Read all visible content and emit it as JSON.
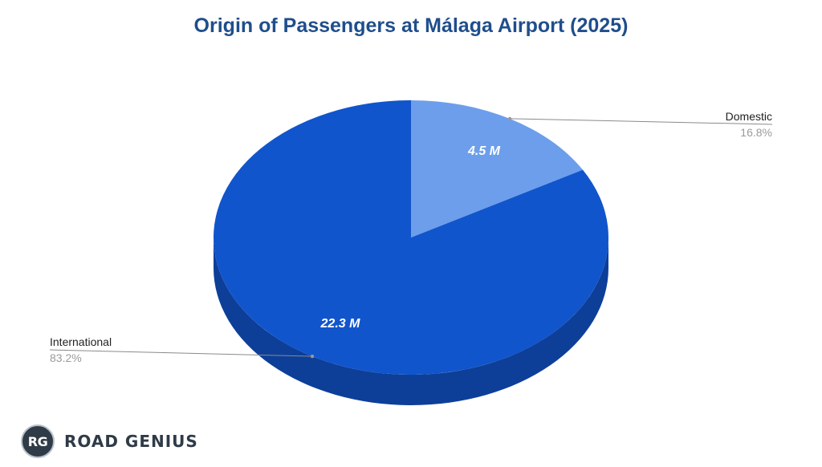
{
  "chart_data": {
    "type": "pie",
    "title": "Origin of Passengers at Málaga Airport (2025)",
    "slices": [
      {
        "name": "Domestic",
        "value": 4.5,
        "value_label": "4.5 M",
        "percent_label": "16.8%",
        "color": "#6d9eeb"
      },
      {
        "name": "International",
        "value": 22.3,
        "value_label": "22.3 M",
        "percent_label": "83.2%",
        "color": "#1155cc"
      }
    ],
    "side_color": "#0d3f99",
    "start_angle_deg": 0,
    "direction": "clockwise",
    "legend": "none"
  },
  "branding": {
    "badge_text": "RG",
    "name": "ROAD GENIUS"
  }
}
